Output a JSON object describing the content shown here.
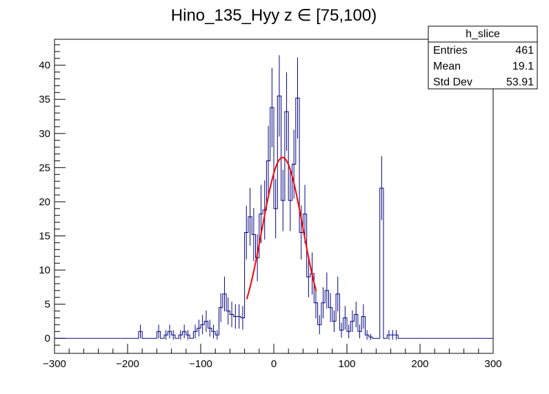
{
  "chart_data": {
    "type": "histogram",
    "title": "Hino_135_Hyy z  ∈ [75,100)",
    "xlabel": "",
    "ylabel": "",
    "xlim": [
      -300,
      300
    ],
    "ylim": [
      -2.2,
      43.8
    ],
    "x_tick_labels": [
      "−300",
      "−200",
      "−100",
      "0",
      "100",
      "200",
      "300"
    ],
    "x_tick_values": [
      -300,
      -200,
      -100,
      0,
      100,
      200,
      300
    ],
    "y_tick_labels": [
      "0",
      "5",
      "10",
      "15",
      "20",
      "25",
      "30",
      "35",
      "40"
    ],
    "y_tick_values": [
      0,
      5,
      10,
      15,
      20,
      25,
      30,
      35,
      40
    ],
    "bin_width": 5,
    "bins": [
      {
        "x": -185,
        "y": 1
      },
      {
        "x": -180,
        "y": 0
      },
      {
        "x": -160,
        "y": 1
      },
      {
        "x": -155,
        "y": 0
      },
      {
        "x": -150,
        "y": 0.5
      },
      {
        "x": -145,
        "y": 1
      },
      {
        "x": -140,
        "y": 0.5
      },
      {
        "x": -130,
        "y": 0.5
      },
      {
        "x": -125,
        "y": 1
      },
      {
        "x": -120,
        "y": 0.5
      },
      {
        "x": -115,
        "y": 0
      },
      {
        "x": -110,
        "y": 1
      },
      {
        "x": -105,
        "y": 1.5
      },
      {
        "x": -100,
        "y": 2
      },
      {
        "x": -95,
        "y": 2.5
      },
      {
        "x": -90,
        "y": 1.5
      },
      {
        "x": -85,
        "y": 1
      },
      {
        "x": -80,
        "y": 0.5
      },
      {
        "x": -75,
        "y": 4.5
      },
      {
        "x": -70,
        "y": 6.5
      },
      {
        "x": -65,
        "y": 4
      },
      {
        "x": -60,
        "y": 3.5
      },
      {
        "x": -55,
        "y": 3.2
      },
      {
        "x": -50,
        "y": 3.2
      },
      {
        "x": -45,
        "y": 3
      },
      {
        "x": -40,
        "y": 15.5
      },
      {
        "x": -35,
        "y": 17.8
      },
      {
        "x": -30,
        "y": 15.2
      },
      {
        "x": -25,
        "y": 11.8
      },
      {
        "x": -20,
        "y": 18.2
      },
      {
        "x": -15,
        "y": 18.8
      },
      {
        "x": -10,
        "y": 26
      },
      {
        "x": -5,
        "y": 33.8
      },
      {
        "x": 0,
        "y": 19
      },
      {
        "x": 5,
        "y": 35.5
      },
      {
        "x": 10,
        "y": 20.2
      },
      {
        "x": 15,
        "y": 33.2
      },
      {
        "x": 20,
        "y": 20.2
      },
      {
        "x": 25,
        "y": 25.5
      },
      {
        "x": 30,
        "y": 35.2
      },
      {
        "x": 35,
        "y": 15.5
      },
      {
        "x": 40,
        "y": 18.2
      },
      {
        "x": 45,
        "y": 9
      },
      {
        "x": 50,
        "y": 9.5
      },
      {
        "x": 55,
        "y": 5.2
      },
      {
        "x": 60,
        "y": 2
      },
      {
        "x": 65,
        "y": 5.2
      },
      {
        "x": 70,
        "y": 7
      },
      {
        "x": 75,
        "y": 4.5
      },
      {
        "x": 80,
        "y": 2.5
      },
      {
        "x": 85,
        "y": 6.5
      },
      {
        "x": 90,
        "y": 1.2
      },
      {
        "x": 95,
        "y": 3
      },
      {
        "x": 100,
        "y": 1
      },
      {
        "x": 105,
        "y": 2.5
      },
      {
        "x": 110,
        "y": 3.5
      },
      {
        "x": 115,
        "y": 1
      },
      {
        "x": 120,
        "y": 3.2
      },
      {
        "x": 125,
        "y": 0.5
      },
      {
        "x": 130,
        "y": 0.2
      },
      {
        "x": 135,
        "y": 0
      },
      {
        "x": 145,
        "y": 22
      },
      {
        "x": 150,
        "y": 0
      },
      {
        "x": 155,
        "y": 0.5
      },
      {
        "x": 160,
        "y": 0.5
      },
      {
        "x": 165,
        "y": 0.5
      }
    ],
    "fit": {
      "type": "gaussian",
      "color": "#ff0000",
      "amplitude": 26.5,
      "mean": 12,
      "sigma": 28,
      "range": [
        -37,
        58
      ]
    },
    "line_color": "#000080",
    "stats_box": {
      "name": "h_slice",
      "rows": [
        {
          "label": "Entries",
          "value": "461"
        },
        {
          "label": "Mean",
          "value": "19.1"
        },
        {
          "label": "Std Dev",
          "value": "53.91"
        }
      ]
    }
  }
}
